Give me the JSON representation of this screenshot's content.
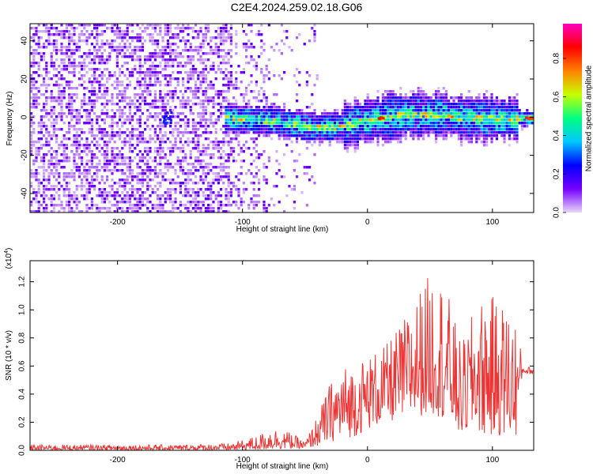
{
  "figure": {
    "title": "C2E4.2024.259.02.18.G06"
  },
  "chart_data": [
    {
      "type": "heatmap",
      "xlabel": "Height of straight line (km)",
      "ylabel": "Frequency (Hz)",
      "xlim": [
        -270,
        133
      ],
      "ylim": [
        -50,
        49
      ],
      "x_ticks": [
        -200,
        -100,
        0,
        100
      ],
      "y_ticks": [
        -40,
        -20,
        0,
        20,
        40
      ],
      "colorbar": {
        "label": "Normalized spectral amplitude",
        "range": [
          0.0,
          0.98
        ],
        "ticks": [
          0.0,
          0.2,
          0.4,
          0.6,
          0.8
        ],
        "colormap": [
          "#e8d8f8",
          "#7700ff",
          "#0000ff",
          "#00c8ff",
          "#00ff80",
          "#c8ff00",
          "#ff8000",
          "#ff0000",
          "#ff00c0"
        ]
      },
      "signal_band_center_hz": [
        {
          "x": -160,
          "y": 0
        },
        {
          "x": -110,
          "y": 0
        },
        {
          "x": -80,
          "y": -1
        },
        {
          "x": -60,
          "y": -3
        },
        {
          "x": -40,
          "y": -5
        },
        {
          "x": -20,
          "y": -4
        },
        {
          "x": 0,
          "y": -1
        },
        {
          "x": 20,
          "y": 1
        },
        {
          "x": 40,
          "y": 2
        },
        {
          "x": 60,
          "y": 2
        },
        {
          "x": 80,
          "y": 0
        },
        {
          "x": 100,
          "y": 0
        },
        {
          "x": 120,
          "y": 0
        },
        {
          "x": 133,
          "y": 0
        }
      ],
      "peak_amplitude_points": [
        {
          "x": 10,
          "y": 0,
          "amplitude": 0.95
        },
        {
          "x": 65,
          "y": 1,
          "amplitude": 0.8
        },
        {
          "x": 128,
          "y": 0,
          "amplitude": 0.9
        }
      ],
      "grid": false
    },
    {
      "type": "line",
      "xlabel": "Height of straight line (km)",
      "ylabel": "SNR (10 * v/v)",
      "y_scale_label": "(x10",
      "y_scale_exp": "4",
      "xlim": [
        -270,
        133
      ],
      "ylim": [
        0,
        1.35
      ],
      "x_ticks": [
        -200,
        -100,
        0,
        100
      ],
      "y_ticks": [
        0.0,
        0.2,
        0.4,
        0.6,
        0.8,
        1.0,
        1.2
      ],
      "line_color": "#ee3333",
      "envelope": [
        {
          "x": -270,
          "lo": 0.0,
          "hi": 0.04
        },
        {
          "x": -150,
          "lo": 0.0,
          "hi": 0.04
        },
        {
          "x": -110,
          "lo": 0.0,
          "hi": 0.05
        },
        {
          "x": -90,
          "lo": 0.0,
          "hi": 0.1
        },
        {
          "x": -75,
          "lo": 0.01,
          "hi": 0.16
        },
        {
          "x": -62,
          "lo": 0.01,
          "hi": 0.13
        },
        {
          "x": -50,
          "lo": 0.01,
          "hi": 0.06
        },
        {
          "x": -40,
          "lo": 0.03,
          "hi": 0.25
        },
        {
          "x": -30,
          "lo": 0.06,
          "hi": 0.48
        },
        {
          "x": -20,
          "lo": 0.08,
          "hi": 0.6
        },
        {
          "x": -10,
          "lo": 0.1,
          "hi": 0.62
        },
        {
          "x": 0,
          "lo": 0.15,
          "hi": 0.68
        },
        {
          "x": 15,
          "lo": 0.2,
          "hi": 0.75
        },
        {
          "x": 30,
          "lo": 0.22,
          "hi": 0.95
        },
        {
          "x": 45,
          "lo": 0.25,
          "hi": 1.2
        },
        {
          "x": 55,
          "lo": 0.25,
          "hi": 1.32
        },
        {
          "x": 65,
          "lo": 0.2,
          "hi": 1.1
        },
        {
          "x": 75,
          "lo": 0.1,
          "hi": 0.75
        },
        {
          "x": 85,
          "lo": 0.15,
          "hi": 1.0
        },
        {
          "x": 95,
          "lo": 0.1,
          "hi": 1.12
        },
        {
          "x": 110,
          "lo": 0.1,
          "hi": 1.05
        },
        {
          "x": 120,
          "lo": 0.1,
          "hi": 0.95
        },
        {
          "x": 124,
          "lo": 0.55,
          "hi": 0.6
        },
        {
          "x": 133,
          "lo": 0.54,
          "hi": 0.59
        }
      ],
      "grid": false
    }
  ]
}
